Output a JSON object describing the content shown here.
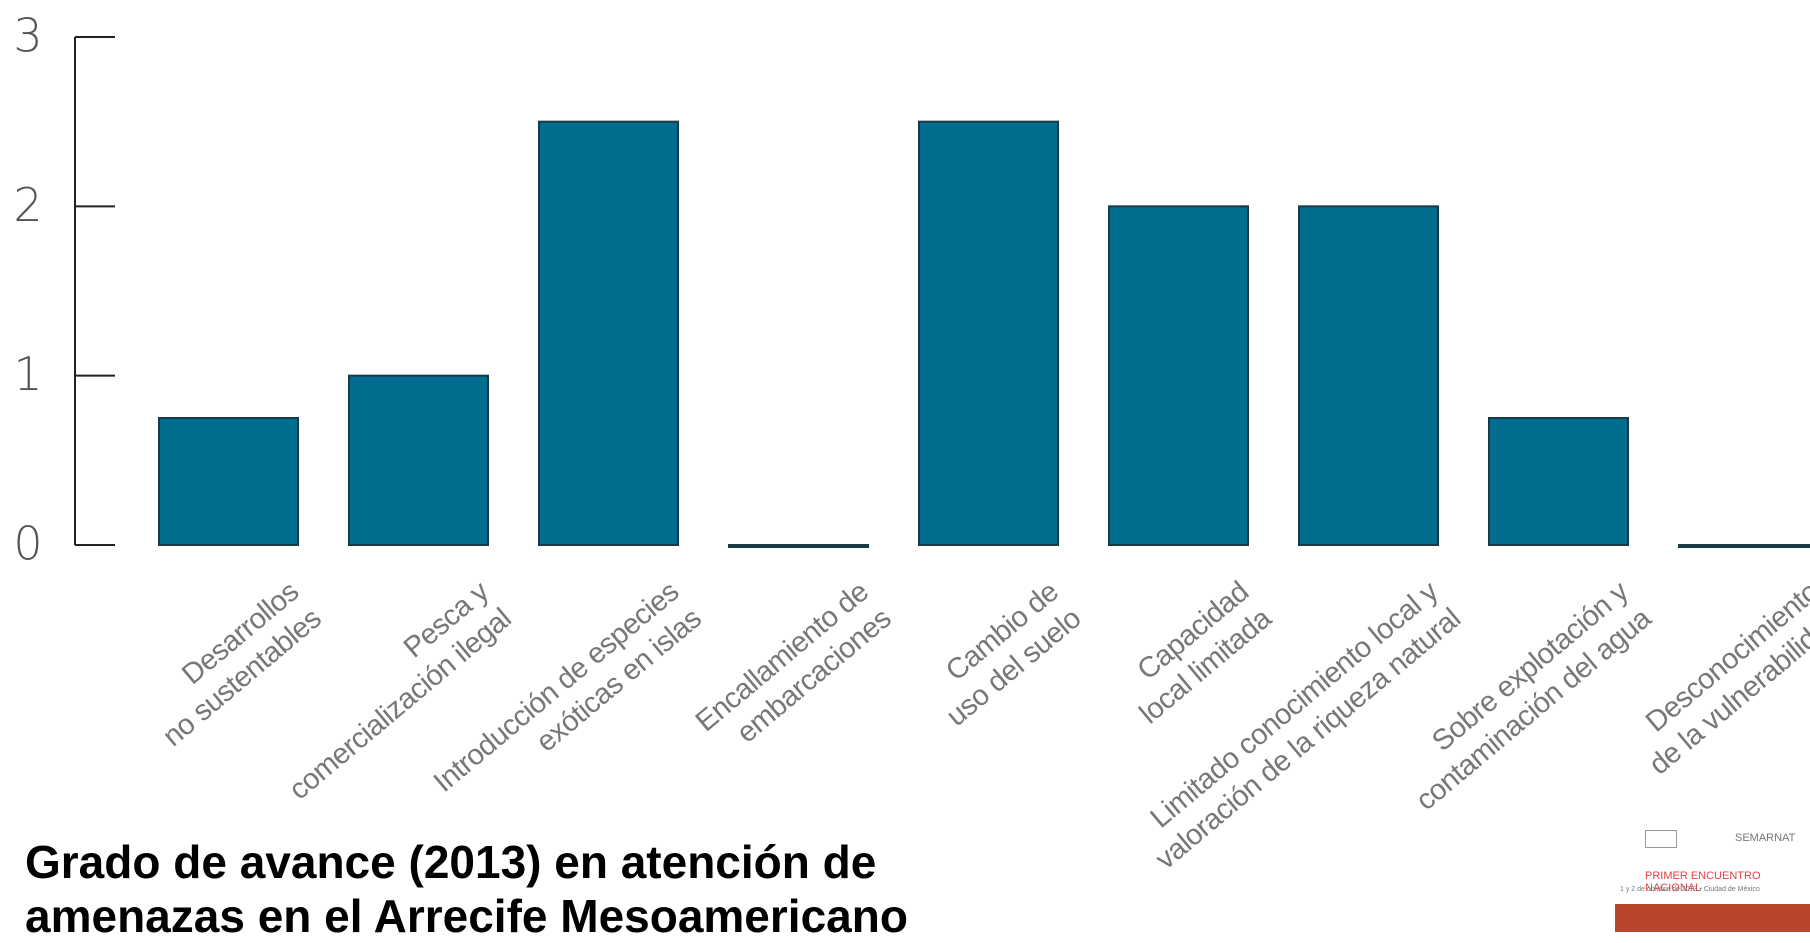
{
  "chart_data": {
    "type": "bar",
    "title": "Grado de avance (2013) en atención de amenazas en el Arrecife Mesoamericano",
    "categories": [
      "Desarrollos\nno sustentables",
      "Pesca y\ncomercialización ilegal",
      "Introducción de especies\nexóticas en islas",
      "Encallamiento de\nembarcaciones",
      "Cambio de\nuso del suelo",
      "Capacidad\nlocal limitada",
      "Limitado conocimiento local y\nvaloración de la riqueza natural",
      "Sobre explotación y\ncontaminación del agua",
      "Desconocimiento\nde la vulnerabilidad"
    ],
    "values": [
      0.75,
      1,
      2.5,
      0,
      2.5,
      2,
      2,
      0.75,
      0
    ],
    "color": "#016e8f",
    "ylim": [
      0,
      3
    ],
    "yticks": [
      0,
      1,
      2,
      3
    ],
    "grid": false
  },
  "logo": {
    "org": "SEMARNAT",
    "event": "PRIMER ENCUENTRO NACIONAL",
    "date": "1 y 2 de octubre de 2013 • Ciudad de México"
  }
}
